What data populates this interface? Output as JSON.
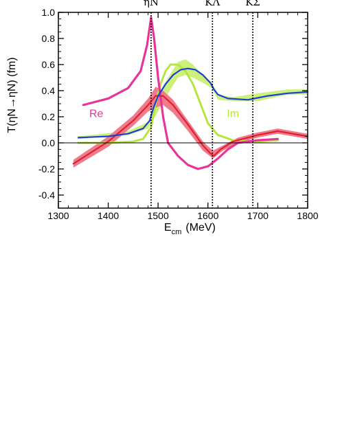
{
  "chart_data": {
    "type": "line",
    "title": "",
    "xlabel": "E",
    "xlabel_sub": "cm",
    "xlabel_unit": "(MeV)",
    "ylabel": "T(ηN→ηN) (fm)",
    "xlim": [
      1300,
      1800
    ],
    "ylim": [
      -0.5,
      1.0
    ],
    "x_ticks": [
      "1300",
      "1400",
      "1500",
      "1600",
      "1700",
      "1800"
    ],
    "y_ticks": [
      "1.0",
      "0.8",
      "0.6",
      "0.4",
      "0.2",
      "0.0",
      "-0.2",
      "-0.4"
    ],
    "thresholds": [
      {
        "label": "ηN",
        "x": 1486
      },
      {
        "label": "KΛ",
        "x": 1609
      },
      {
        "label": "KΣ",
        "x": 1690
      }
    ],
    "zero_line": true,
    "annotations": [
      {
        "text": "Re",
        "color": "#e8339a"
      },
      {
        "text": "Im",
        "color": "#b5e53f"
      }
    ],
    "colors": {
      "re_thin": "#e8339a",
      "im_thin": "#b5e53f",
      "im_band": "#ccf07a",
      "re_band": "#f07b8c",
      "re_main": "#e0202e",
      "im_main": "#1a3fd6"
    },
    "series": [
      {
        "id": "re_thin",
        "points": [
          [
            1350,
            0.29
          ],
          [
            1400,
            0.34
          ],
          [
            1440,
            0.42
          ],
          [
            1465,
            0.55
          ],
          [
            1478,
            0.75
          ],
          [
            1486,
            0.96
          ],
          [
            1492,
            0.8
          ],
          [
            1500,
            0.5
          ],
          [
            1510,
            0.2
          ],
          [
            1520,
            0.0
          ],
          [
            1540,
            -0.1
          ],
          [
            1560,
            -0.17
          ],
          [
            1580,
            -0.2
          ],
          [
            1600,
            -0.18
          ],
          [
            1620,
            -0.12
          ],
          [
            1640,
            -0.05
          ],
          [
            1660,
            0.0
          ],
          [
            1700,
            0.02
          ],
          [
            1740,
            0.03
          ]
        ]
      },
      {
        "id": "im_thin",
        "points": [
          [
            1340,
            0.0
          ],
          [
            1400,
            0.0
          ],
          [
            1450,
            0.01
          ],
          [
            1470,
            0.03
          ],
          [
            1486,
            0.12
          ],
          [
            1495,
            0.3
          ],
          [
            1505,
            0.45
          ],
          [
            1515,
            0.55
          ],
          [
            1525,
            0.6
          ],
          [
            1540,
            0.6
          ],
          [
            1555,
            0.55
          ],
          [
            1570,
            0.45
          ],
          [
            1585,
            0.3
          ],
          [
            1600,
            0.15
          ],
          [
            1620,
            0.06
          ],
          [
            1650,
            0.02
          ],
          [
            1700,
            0.01
          ],
          [
            1740,
            0.02
          ]
        ]
      },
      {
        "id": "im_band",
        "upper": [
          [
            1340,
            0.05
          ],
          [
            1440,
            0.09
          ],
          [
            1480,
            0.16
          ],
          [
            1500,
            0.37
          ],
          [
            1520,
            0.5
          ],
          [
            1540,
            0.62
          ],
          [
            1555,
            0.64
          ],
          [
            1570,
            0.6
          ],
          [
            1590,
            0.52
          ],
          [
            1608,
            0.46
          ],
          [
            1620,
            0.37
          ],
          [
            1650,
            0.35
          ],
          [
            1700,
            0.38
          ],
          [
            1760,
            0.41
          ],
          [
            1800,
            0.41
          ]
        ],
        "lower": [
          [
            1800,
            0.37
          ],
          [
            1760,
            0.37
          ],
          [
            1700,
            0.32
          ],
          [
            1650,
            0.32
          ],
          [
            1620,
            0.33
          ],
          [
            1608,
            0.42
          ],
          [
            1590,
            0.46
          ],
          [
            1570,
            0.5
          ],
          [
            1555,
            0.52
          ],
          [
            1540,
            0.5
          ],
          [
            1520,
            0.38
          ],
          [
            1500,
            0.24
          ],
          [
            1480,
            0.11
          ],
          [
            1440,
            0.06
          ],
          [
            1340,
            0.03
          ]
        ]
      },
      {
        "id": "re_band",
        "upper": [
          [
            1330,
            -0.13
          ],
          [
            1400,
            0.05
          ],
          [
            1450,
            0.21
          ],
          [
            1480,
            0.34
          ],
          [
            1495,
            0.43
          ],
          [
            1510,
            0.4
          ],
          [
            1530,
            0.33
          ],
          [
            1560,
            0.17
          ],
          [
            1590,
            0.01
          ],
          [
            1610,
            -0.06
          ],
          [
            1630,
            -0.02
          ],
          [
            1660,
            0.04
          ],
          [
            1700,
            0.08
          ],
          [
            1740,
            0.11
          ],
          [
            1800,
            0.07
          ]
        ],
        "lower": [
          [
            1800,
            0.03
          ],
          [
            1740,
            0.07
          ],
          [
            1700,
            0.04
          ],
          [
            1660,
            0.0
          ],
          [
            1630,
            -0.06
          ],
          [
            1610,
            -0.12
          ],
          [
            1590,
            -0.06
          ],
          [
            1560,
            0.09
          ],
          [
            1530,
            0.23
          ],
          [
            1510,
            0.29
          ],
          [
            1495,
            0.27
          ],
          [
            1480,
            0.24
          ],
          [
            1450,
            0.13
          ],
          [
            1400,
            -0.03
          ],
          [
            1330,
            -0.19
          ]
        ]
      },
      {
        "id": "re_main",
        "points": [
          [
            1330,
            -0.16
          ],
          [
            1400,
            0.01
          ],
          [
            1450,
            0.17
          ],
          [
            1480,
            0.29
          ],
          [
            1495,
            0.36
          ],
          [
            1510,
            0.36
          ],
          [
            1530,
            0.29
          ],
          [
            1560,
            0.14
          ],
          [
            1590,
            -0.02
          ],
          [
            1605,
            -0.08
          ],
          [
            1612,
            -0.1
          ],
          [
            1625,
            -0.05
          ],
          [
            1650,
            0.01
          ],
          [
            1700,
            0.06
          ],
          [
            1740,
            0.09
          ],
          [
            1800,
            0.05
          ]
        ]
      },
      {
        "id": "im_main",
        "points": [
          [
            1340,
            0.04
          ],
          [
            1400,
            0.05
          ],
          [
            1440,
            0.07
          ],
          [
            1470,
            0.11
          ],
          [
            1483,
            0.17
          ],
          [
            1490,
            0.26
          ],
          [
            1500,
            0.36
          ],
          [
            1515,
            0.45
          ],
          [
            1530,
            0.52
          ],
          [
            1545,
            0.56
          ],
          [
            1560,
            0.57
          ],
          [
            1575,
            0.56
          ],
          [
            1590,
            0.52
          ],
          [
            1605,
            0.46
          ],
          [
            1612,
            0.41
          ],
          [
            1620,
            0.37
          ],
          [
            1640,
            0.34
          ],
          [
            1680,
            0.33
          ],
          [
            1720,
            0.36
          ],
          [
            1760,
            0.38
          ],
          [
            1800,
            0.39
          ]
        ]
      }
    ]
  }
}
